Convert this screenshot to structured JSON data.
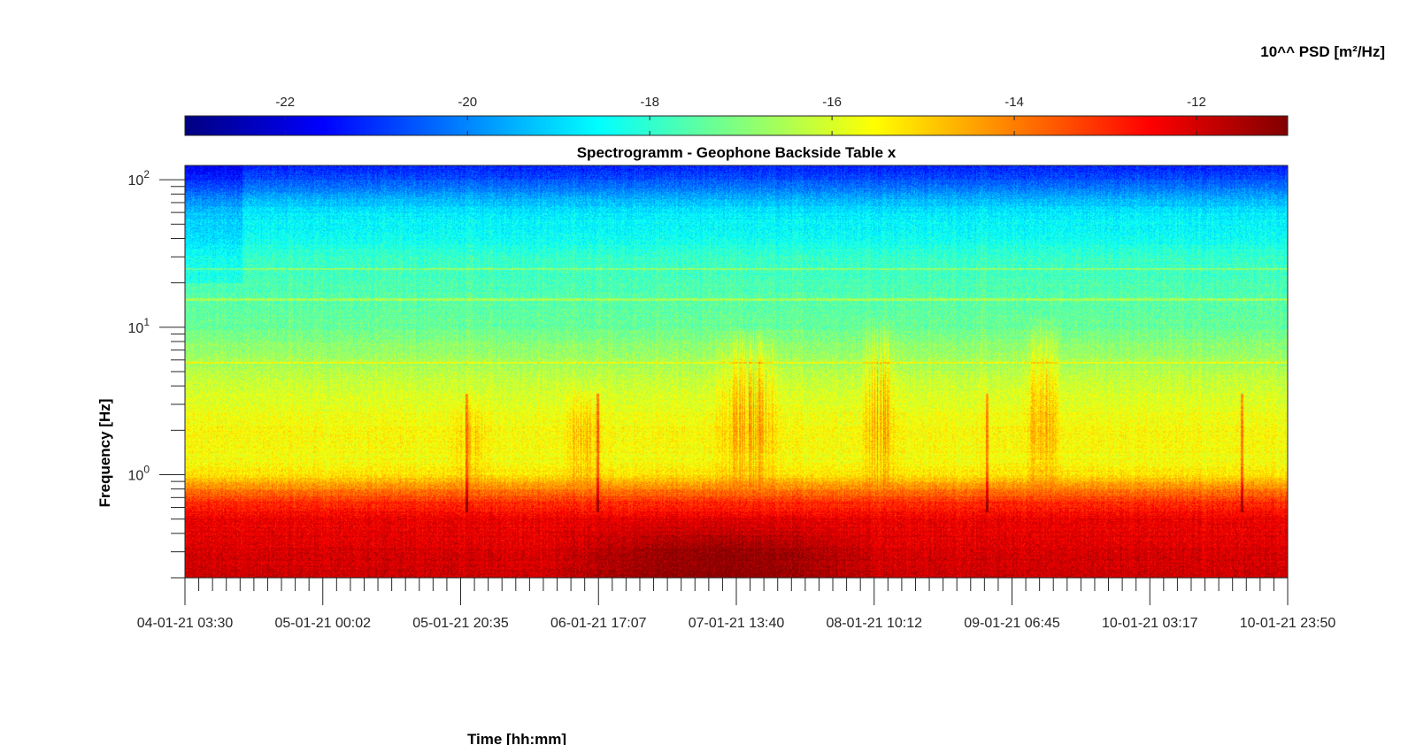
{
  "chart_data": {
    "type": "heatmap",
    "title": "Spectrogramm - Geophone Backside Table x",
    "xlabel": "Time [hh:mm]",
    "ylabel": "Frequency [Hz]",
    "colorbar_label": "10^^ PSD [m²/Hz]",
    "colormap": "jet",
    "color_range": [
      -23.1,
      -11.0
    ],
    "colorbar_ticks": [
      "-22",
      "-20",
      "-18",
      "-16",
      "-14",
      "-12"
    ],
    "colorbar_tick_values": [
      -22,
      -20,
      -18,
      -16,
      -14,
      -12
    ],
    "x_tick_labels": [
      "04-01-21 03:30",
      "05-01-21 00:02",
      "05-01-21 20:35",
      "06-01-21 17:07",
      "07-01-21 13:40",
      "08-01-21 10:12",
      "09-01-21 06:45",
      "10-01-21 03:17",
      "10-01-21 23:50"
    ],
    "y_scale": "log",
    "y_range_hz": [
      0.2,
      125
    ],
    "y_tick_labels": [
      {
        "base": "10",
        "exp": "2"
      },
      {
        "base": "10",
        "exp": "1"
      },
      {
        "base": "10",
        "exp": "0"
      }
    ],
    "y_tick_values": [
      100,
      10,
      1
    ],
    "log10_psd_profile": {
      "frequency_hz": [
        0.2,
        0.5,
        0.65,
        0.8,
        1.0,
        1.2,
        2,
        4,
        6,
        10,
        20,
        30,
        40,
        60,
        80,
        100,
        125
      ],
      "value": [
        -11.9,
        -12.3,
        -13.0,
        -14.0,
        -15.2,
        -15.6,
        -15.5,
        -16.1,
        -16.6,
        -17.3,
        -17.7,
        -17.9,
        -18.4,
        -18.8,
        -19.7,
        -20.6,
        -21.2
      ]
    },
    "bursts": [
      {
        "time_range": [
          "05-01-21 19:00",
          "06-01-21 01:00"
        ],
        "freq_range_hz": [
          0.8,
          3.5
        ],
        "delta": 0.9
      },
      {
        "time_range": [
          "06-01-21 12:00",
          "06-01-21 18:00"
        ],
        "freq_range_hz": [
          0.8,
          4
        ],
        "delta": 1.2
      },
      {
        "time_range": [
          "07-01-21 10:00",
          "07-01-21 21:00"
        ],
        "freq_range_hz": [
          0.8,
          10
        ],
        "delta": 1.6
      },
      {
        "time_range": [
          "08-01-21 08:00",
          "08-01-21 14:00"
        ],
        "freq_range_hz": [
          0.8,
          12
        ],
        "delta": 1.7
      },
      {
        "time_range": [
          "09-01-21 08:00",
          "09-01-21 14:00"
        ],
        "freq_range_hz": [
          0.8,
          12
        ],
        "delta": 1.8
      }
    ],
    "quiet_deep_low_frequency": {
      "time_range": [
        "06-01-21 10:00",
        "08-01-21 12:00"
      ],
      "freq_range_hz": [
        0.2,
        0.55
      ],
      "delta": 0.8
    },
    "horizontal_lines_hz": [
      25,
      15.5,
      5.8
    ],
    "vertical_spikes": [
      "05-01-21 21:30",
      "06-01-21 17:00",
      "09-01-21 03:00",
      "10-01-21 17:00"
    ]
  }
}
